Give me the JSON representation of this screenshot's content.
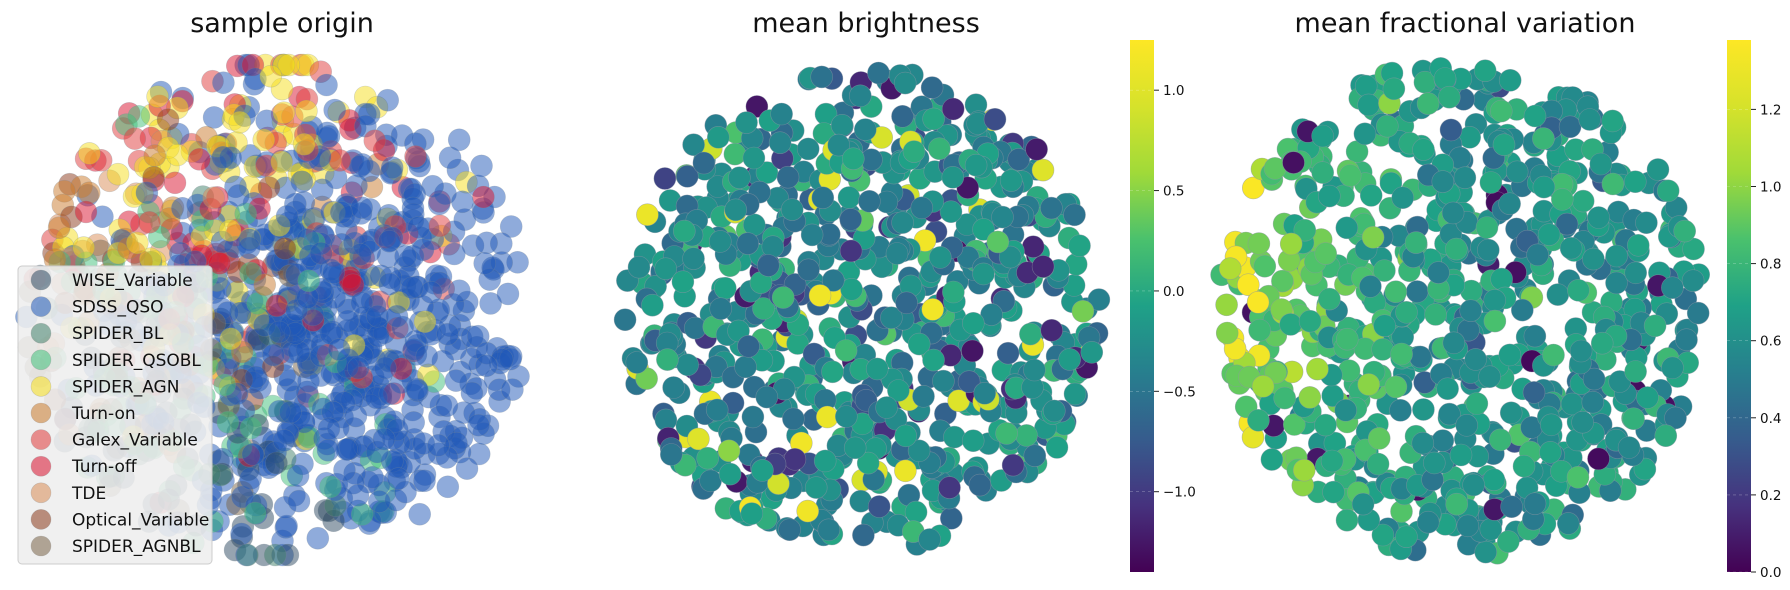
{
  "chart_data": [
    {
      "type": "scatter",
      "title": "sample origin",
      "xlabel": "",
      "ylabel": "",
      "axes_visible": false,
      "legend_placement": "lower-left",
      "point_alpha": 0.5,
      "series": [
        {
          "name": "WISE_Variable",
          "color": "#2e4a62",
          "count": 60
        },
        {
          "name": "SDSS_QSO",
          "color": "#1f57b8",
          "count": 650
        },
        {
          "name": "SPIDER_BL",
          "color": "#3f7f6a",
          "count": 30
        },
        {
          "name": "SPIDER_QSOBL",
          "color": "#40bf7a",
          "count": 90
        },
        {
          "name": "SPIDER_AGN",
          "color": "#f5de1c",
          "count": 110
        },
        {
          "name": "Turn-on",
          "color": "#c97a2c",
          "count": 25
        },
        {
          "name": "Galex_Variable",
          "color": "#e03a3a",
          "count": 70
        },
        {
          "name": "Turn-off",
          "color": "#d9112e",
          "count": 55
        },
        {
          "name": "TDE",
          "color": "#d98c55",
          "count": 20
        },
        {
          "name": "Optical_Variable",
          "color": "#8b3a1c",
          "count": 35
        },
        {
          "name": "SPIDER_AGNBL",
          "color": "#7a6448",
          "count": 25
        }
      ]
    },
    {
      "type": "scatter",
      "title": "mean brightness",
      "xlabel": "",
      "ylabel": "",
      "axes_visible": false,
      "colormap": "viridis",
      "colorbar": {
        "min": -1.4,
        "max": 1.25,
        "ticks": [
          1.0,
          0.5,
          0.0,
          -0.5,
          -1.0
        ],
        "tick_labels": [
          "1.0",
          "0.5",
          "0.0",
          "−0.5",
          "−1.0"
        ]
      }
    },
    {
      "type": "scatter",
      "title": "mean fractional variation",
      "xlabel": "",
      "ylabel": "",
      "axes_visible": false,
      "colormap": "viridis",
      "colorbar": {
        "min": 0.0,
        "max": 1.38,
        "ticks": [
          1.2,
          1.0,
          0.8,
          0.6,
          0.4,
          0.2,
          0.0
        ],
        "tick_labels": [
          "1.2",
          "1.0",
          "0.8",
          "0.6",
          "0.4",
          "0.2",
          "0.0"
        ]
      }
    }
  ]
}
